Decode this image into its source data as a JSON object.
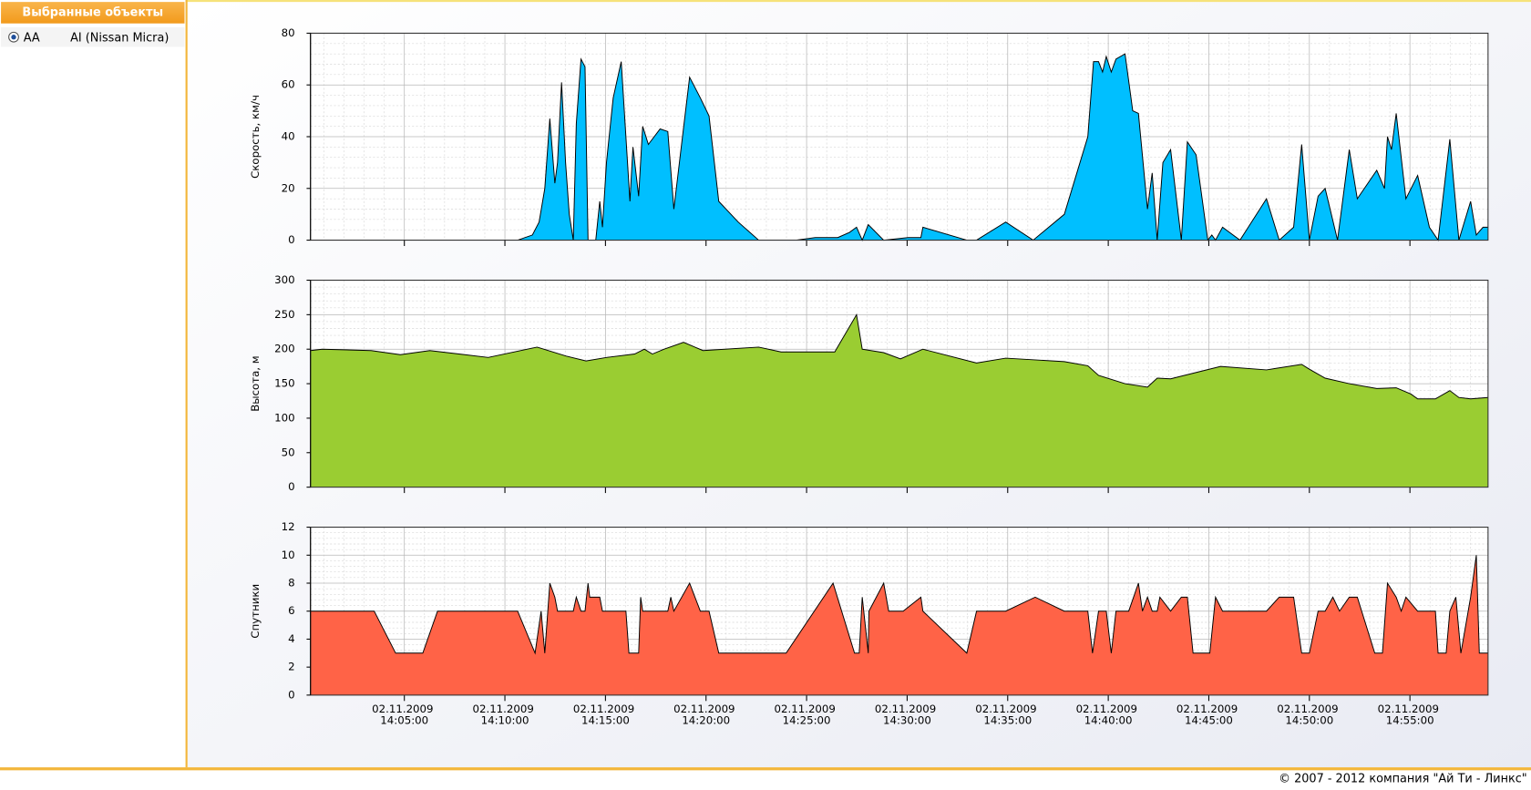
{
  "panel": {
    "title": "Выбранные объекты",
    "items": [
      {
        "code": "AA",
        "name": "AI (Nissan Micra)"
      }
    ]
  },
  "footer": "© 2007 - 2012 компания \"Ай Ти - Линкс\"",
  "chart_data": [
    {
      "type": "area",
      "ylabel": "Скорость, км/ч",
      "color": "#00bfff",
      "grid": true,
      "xlim": [
        "2009-11-02 14:00:20",
        "2009-11-02 14:58:53"
      ],
      "ylim": [
        0,
        80
      ],
      "yticks": [
        0,
        20,
        40,
        60,
        80
      ],
      "xticks": [
        "2009-11-02 14:05:00",
        "2009-11-02 14:10:00",
        "2009-11-02 14:15:00",
        "2009-11-02 14:20:00",
        "2009-11-02 14:25:00",
        "2009-11-02 14:30:00",
        "2009-11-02 14:35:00",
        "2009-11-02 14:40:00",
        "2009-11-02 14:45:00",
        "2009-11-02 14:50:00",
        "2009-11-02 14:55:00"
      ],
      "x": [
        "2009-11-02 14:00:20",
        "2009-11-02 14:10:38",
        "2009-11-02 14:11:22",
        "2009-11-02 14:11:42",
        "2009-11-02 14:11:59",
        "2009-11-02 14:12:14",
        "2009-11-02 14:12:29",
        "2009-11-02 14:12:37",
        "2009-11-02 14:12:49",
        "2009-11-02 14:13:01",
        "2009-11-02 14:13:12",
        "2009-11-02 14:13:24",
        "2009-11-02 14:13:33",
        "2009-11-02 14:13:47",
        "2009-11-02 14:13:59",
        "2009-11-02 14:14:08",
        "2009-11-02 14:14:31",
        "2009-11-02 14:14:43",
        "2009-11-02 14:14:51",
        "2009-11-02 14:15:03",
        "2009-11-02 14:15:23",
        "2009-11-02 14:15:47",
        "2009-11-02 14:16:13",
        "2009-11-02 14:16:22",
        "2009-11-02 14:16:39",
        "2009-11-02 14:16:51",
        "2009-11-02 14:17:08",
        "2009-11-02 14:17:43",
        "2009-11-02 14:18:06",
        "2009-11-02 14:18:24",
        "2009-11-02 14:19:11",
        "2009-11-02 14:19:43",
        "2009-11-02 14:20:09",
        "2009-11-02 14:20:38",
        "2009-11-02 14:21:36",
        "2009-11-02 14:22:37",
        "2009-11-02 14:24:28",
        "2009-11-02 14:25:26",
        "2009-11-02 14:26:33",
        "2009-11-02 14:27:08",
        "2009-11-02 14:27:29",
        "2009-11-02 14:27:46",
        "2009-11-02 14:28:04",
        "2009-11-02 14:28:50",
        "2009-11-02 14:30:03",
        "2009-11-02 14:30:41",
        "2009-11-02 14:30:47",
        "2009-11-02 14:32:58",
        "2009-11-02 14:33:27",
        "2009-11-02 14:34:54",
        "2009-11-02 14:36:16",
        "2009-11-02 14:37:49",
        "2009-11-02 14:38:59",
        "2009-11-02 14:39:16",
        "2009-11-02 14:39:31",
        "2009-11-02 14:39:43",
        "2009-11-02 14:39:54",
        "2009-11-02 14:40:09",
        "2009-11-02 14:40:23",
        "2009-11-02 14:40:50",
        "2009-11-02 14:41:13",
        "2009-11-02 14:41:30",
        "2009-11-02 14:41:57",
        "2009-11-02 14:42:11",
        "2009-11-02 14:42:26",
        "2009-11-02 14:42:43",
        "2009-11-02 14:43:06",
        "2009-11-02 14:43:38",
        "2009-11-02 14:43:56",
        "2009-11-02 14:44:22",
        "2009-11-02 14:44:57",
        "2009-11-02 14:45:09",
        "2009-11-02 14:45:20",
        "2009-11-02 14:45:41",
        "2009-11-02 14:46:33",
        "2009-11-02 14:47:52",
        "2009-11-02 14:48:30",
        "2009-11-02 14:49:13",
        "2009-11-02 14:49:37",
        "2009-11-02 14:50:00",
        "2009-11-02 14:50:26",
        "2009-11-02 14:50:47",
        "2009-11-02 14:51:24",
        "2009-11-02 14:51:59",
        "2009-11-02 14:52:23",
        "2009-11-02 14:53:21",
        "2009-11-02 14:53:44",
        "2009-11-02 14:53:53",
        "2009-11-02 14:54:05",
        "2009-11-02 14:54:19",
        "2009-11-02 14:54:48",
        "2009-11-02 14:55:23",
        "2009-11-02 14:55:58",
        "2009-11-02 14:56:24",
        "2009-11-02 14:56:59",
        "2009-11-02 14:57:26",
        "2009-11-02 14:58:01",
        "2009-11-02 14:58:18",
        "2009-11-02 14:58:38",
        "2009-11-02 14:58:53"
      ],
      "values": [
        0,
        0,
        2,
        7,
        20,
        47,
        22,
        30,
        61,
        30,
        10,
        0,
        45,
        70,
        67,
        0,
        0,
        15,
        5,
        30,
        55,
        69,
        15,
        36,
        17,
        44,
        37,
        43,
        42,
        12,
        63,
        55,
        48,
        15,
        7,
        0,
        0,
        1,
        1,
        3,
        5,
        0,
        6,
        0,
        1,
        1,
        5,
        0,
        0,
        7,
        0,
        10,
        40,
        69,
        69,
        65,
        71,
        65,
        70,
        72,
        50,
        49,
        12,
        26,
        0,
        30,
        35,
        0,
        38,
        33,
        0,
        2,
        0,
        5,
        0,
        16,
        0,
        5,
        37,
        0,
        17,
        20,
        0,
        35,
        16,
        27,
        20,
        40,
        35,
        49,
        16,
        25,
        5,
        0,
        39,
        0,
        15,
        2,
        5,
        5
      ]
    },
    {
      "type": "area",
      "ylabel": "Высота, м",
      "color": "#9acd32",
      "grid": true,
      "xlim": [
        "2009-11-02 14:00:20",
        "2009-11-02 14:58:53"
      ],
      "ylim": [
        0,
        300
      ],
      "yticks": [
        0,
        50,
        100,
        150,
        200,
        250,
        300
      ],
      "xticks": [
        "2009-11-02 14:05:00",
        "2009-11-02 14:10:00",
        "2009-11-02 14:15:00",
        "2009-11-02 14:20:00",
        "2009-11-02 14:25:00",
        "2009-11-02 14:30:00",
        "2009-11-02 14:35:00",
        "2009-11-02 14:40:00",
        "2009-11-02 14:45:00",
        "2009-11-02 14:50:00",
        "2009-11-02 14:55:00"
      ],
      "x": [
        "2009-11-02 14:00:20",
        "2009-11-02 14:00:55",
        "2009-11-02 14:03:21",
        "2009-11-02 14:04:48",
        "2009-11-02 14:06:16",
        "2009-11-02 14:09:10",
        "2009-11-02 14:11:36",
        "2009-11-02 14:13:03",
        "2009-11-02 14:14:02",
        "2009-11-02 14:15:03",
        "2009-11-02 14:16:27",
        "2009-11-02 14:16:56",
        "2009-11-02 14:17:20",
        "2009-11-02 14:17:55",
        "2009-11-02 14:18:53",
        "2009-11-02 14:19:51",
        "2009-11-02 14:22:37",
        "2009-11-02 14:23:44",
        "2009-11-02 14:26:24",
        "2009-11-02 14:27:29",
        "2009-11-02 14:27:46",
        "2009-11-02 14:28:50",
        "2009-11-02 14:29:40",
        "2009-11-02 14:30:47",
        "2009-11-02 14:33:27",
        "2009-11-02 14:34:54",
        "2009-11-02 14:37:49",
        "2009-11-02 14:38:59",
        "2009-11-02 14:39:31",
        "2009-11-02 14:40:50",
        "2009-11-02 14:41:57",
        "2009-11-02 14:42:26",
        "2009-11-02 14:43:06",
        "2009-11-02 14:45:35",
        "2009-11-02 14:47:52",
        "2009-11-02 14:49:37",
        "2009-11-02 14:50:00",
        "2009-11-02 14:50:47",
        "2009-11-02 14:51:59",
        "2009-11-02 14:53:21",
        "2009-11-02 14:54:19",
        "2009-11-02 14:55:03",
        "2009-11-02 14:55:23",
        "2009-11-02 14:56:16",
        "2009-11-02 14:56:59",
        "2009-11-02 14:57:26",
        "2009-11-02 14:58:01",
        "2009-11-02 14:58:53"
      ],
      "values": [
        198,
        200,
        198,
        192,
        198,
        188,
        203,
        190,
        183,
        188,
        193,
        200,
        193,
        200,
        210,
        198,
        203,
        196,
        196,
        250,
        200,
        195,
        186,
        200,
        180,
        187,
        182,
        176,
        162,
        150,
        145,
        158,
        157,
        175,
        170,
        178,
        171,
        158,
        150,
        143,
        144,
        135,
        128,
        128,
        140,
        130,
        128,
        130
      ]
    },
    {
      "type": "area",
      "ylabel": "Спутники",
      "color": "#ff6347",
      "grid": true,
      "xlim": [
        "2009-11-02 14:00:20",
        "2009-11-02 14:58:53"
      ],
      "ylim": [
        0,
        12
      ],
      "yticks": [
        0,
        2,
        4,
        6,
        8,
        10,
        12
      ],
      "xticks": [
        {
          "value": "2009-11-02 14:05:00",
          "label": "02.11.2009 14:05:00"
        },
        {
          "value": "2009-11-02 14:10:00",
          "label": "02.11.2009 14:10:00"
        },
        {
          "value": "2009-11-02 14:15:00",
          "label": "02.11.2009 14:15:00"
        },
        {
          "value": "2009-11-02 14:20:00",
          "label": "02.11.2009 14:20:00"
        },
        {
          "value": "2009-11-02 14:25:00",
          "label": "02.11.2009 14:25:00"
        },
        {
          "value": "2009-11-02 14:30:00",
          "label": "02.11.2009 14:30:00"
        },
        {
          "value": "2009-11-02 14:35:00",
          "label": "02.11.2009 14:35:00"
        },
        {
          "value": "2009-11-02 14:40:00",
          "label": "02.11.2009 14:40:00"
        },
        {
          "value": "2009-11-02 14:45:00",
          "label": "02.11.2009 14:45:00"
        },
        {
          "value": "2009-11-02 14:50:00",
          "label": "02.11.2009 14:50:00"
        },
        {
          "value": "2009-11-02 14:55:00",
          "label": "02.11.2009 14:55:00"
        }
      ],
      "x": [
        "2009-11-02 14:00:20",
        "2009-11-02 14:03:30",
        "2009-11-02 14:04:34",
        "2009-11-02 14:05:55",
        "2009-11-02 14:06:39",
        "2009-11-02 14:10:38",
        "2009-11-02 14:11:30",
        "2009-11-02 14:11:48",
        "2009-11-02 14:11:59",
        "2009-11-02 14:12:14",
        "2009-11-02 14:12:29",
        "2009-11-02 14:12:37",
        "2009-11-02 14:13:24",
        "2009-11-02 14:13:33",
        "2009-11-02 14:13:47",
        "2009-11-02 14:13:59",
        "2009-11-02 14:14:08",
        "2009-11-02 14:14:13",
        "2009-11-02 14:14:43",
        "2009-11-02 14:14:51",
        "2009-11-02 14:16:01",
        "2009-11-02 14:16:10",
        "2009-11-02 14:16:39",
        "2009-11-02 14:16:45",
        "2009-11-02 14:16:51",
        "2009-11-02 14:18:06",
        "2009-11-02 14:18:15",
        "2009-11-02 14:18:24",
        "2009-11-02 14:19:11",
        "2009-11-02 14:19:43",
        "2009-11-02 14:20:09",
        "2009-11-02 14:20:38",
        "2009-11-02 14:23:59",
        "2009-11-02 14:26:19",
        "2009-11-02 14:27:23",
        "2009-11-02 14:27:37",
        "2009-11-02 14:27:46",
        "2009-11-02 14:28:04",
        "2009-11-02 14:28:06",
        "2009-11-02 14:28:50",
        "2009-11-02 14:29:05",
        "2009-11-02 14:29:48",
        "2009-11-02 14:30:41",
        "2009-11-02 14:30:47",
        "2009-11-02 14:32:58",
        "2009-11-02 14:33:27",
        "2009-11-02 14:34:54",
        "2009-11-02 14:36:22",
        "2009-11-02 14:37:49",
        "2009-11-02 14:38:59",
        "2009-11-02 14:39:13",
        "2009-11-02 14:39:31",
        "2009-11-02 14:39:54",
        "2009-11-02 14:40:09",
        "2009-11-02 14:40:23",
        "2009-11-02 14:41:01",
        "2009-11-02 14:41:30",
        "2009-11-02 14:41:42",
        "2009-11-02 14:41:57",
        "2009-11-02 14:42:11",
        "2009-11-02 14:42:26",
        "2009-11-02 14:42:34",
        "2009-11-02 14:43:06",
        "2009-11-02 14:43:38",
        "2009-11-02 14:43:56",
        "2009-11-02 14:44:13",
        "2009-11-02 14:45:03",
        "2009-11-02 14:45:20",
        "2009-11-02 14:45:41",
        "2009-11-02 14:47:52",
        "2009-11-02 14:48:30",
        "2009-11-02 14:49:13",
        "2009-11-02 14:49:37",
        "2009-11-02 14:50:00",
        "2009-11-02 14:50:26",
        "2009-11-02 14:50:47",
        "2009-11-02 14:51:10",
        "2009-11-02 14:51:30",
        "2009-11-02 14:51:59",
        "2009-11-02 14:52:23",
        "2009-11-02 14:53:15",
        "2009-11-02 14:53:38",
        "2009-11-02 14:53:53",
        "2009-11-02 14:54:19",
        "2009-11-02 14:54:34",
        "2009-11-02 14:54:48",
        "2009-11-02 14:55:23",
        "2009-11-02 14:56:16",
        "2009-11-02 14:56:24",
        "2009-11-02 14:56:48",
        "2009-11-02 14:56:59",
        "2009-11-02 14:57:17",
        "2009-11-02 14:57:32",
        "2009-11-02 14:58:01",
        "2009-11-02 14:58:18",
        "2009-11-02 14:58:27",
        "2009-11-02 14:58:53"
      ],
      "values": [
        6,
        6,
        3,
        3,
        6,
        6,
        3,
        6,
        3,
        8,
        7,
        6,
        6,
        7,
        6,
        6,
        8,
        7,
        7,
        6,
        6,
        3,
        3,
        7,
        6,
        6,
        7,
        6,
        8,
        6,
        6,
        3,
        3,
        8,
        3,
        3,
        7,
        3,
        6,
        8,
        6,
        6,
        7,
        6,
        3,
        6,
        6,
        7,
        6,
        6,
        3,
        6,
        6,
        3,
        6,
        6,
        8,
        6,
        7,
        6,
        6,
        7,
        6,
        7,
        7,
        3,
        3,
        7,
        6,
        6,
        7,
        7,
        3,
        3,
        6,
        6,
        7,
        6,
        7,
        7,
        3,
        3,
        8,
        7,
        6,
        7,
        6,
        6,
        3,
        3,
        6,
        7,
        3,
        7,
        10,
        3,
        3
      ]
    }
  ]
}
